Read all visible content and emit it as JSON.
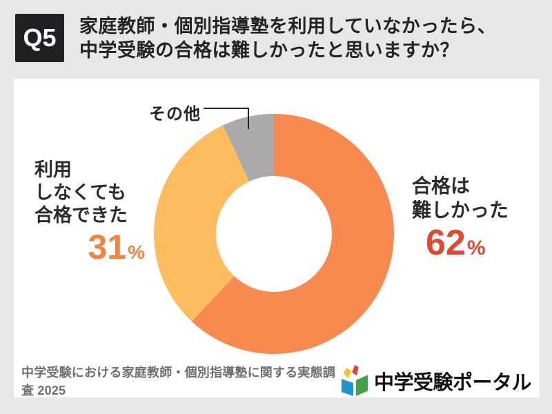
{
  "colors": {
    "background": "#E9E7E5",
    "card": "#FFFFFF",
    "badge_bg": "#202024",
    "badge_text": "#FFFFFF",
    "title_text": "#232323",
    "footer_text": "#6F6F6F",
    "leader_line": "#222222"
  },
  "header": {
    "badge": "Q5",
    "title_line1": "家庭教師・個別指導塾を利用していなかったら、",
    "title_line2": "中学受験の合格は難しかったと思いますか？"
  },
  "chart_data": {
    "type": "pie",
    "subtype": "donut",
    "start_angle_deg": 0,
    "direction": "clockwise",
    "categories": [
      "合格は難しかった",
      "利用しなくても合格できた",
      "その他"
    ],
    "values": [
      62,
      31,
      7
    ],
    "unit": "%",
    "colors": [
      "#F88A4F",
      "#FDBD5F",
      "#AAAAAA"
    ],
    "inner_radius_ratio": 0.48,
    "legend": "none",
    "labels": {
      "right": {
        "lines": [
          "合格は",
          "難しかった"
        ],
        "value": "62",
        "unit": "%",
        "value_color": "#E0482F"
      },
      "left": {
        "lines": [
          "利用",
          "しなくても",
          "合格できた"
        ],
        "value": "31",
        "unit": "%",
        "value_color": "#F1853F"
      },
      "other": {
        "text": "その他"
      }
    }
  },
  "footer": {
    "source": "中学受験における家庭教師・個別指導塾に関する実態調査 2025",
    "logo_text": "中学受験ポータル"
  }
}
